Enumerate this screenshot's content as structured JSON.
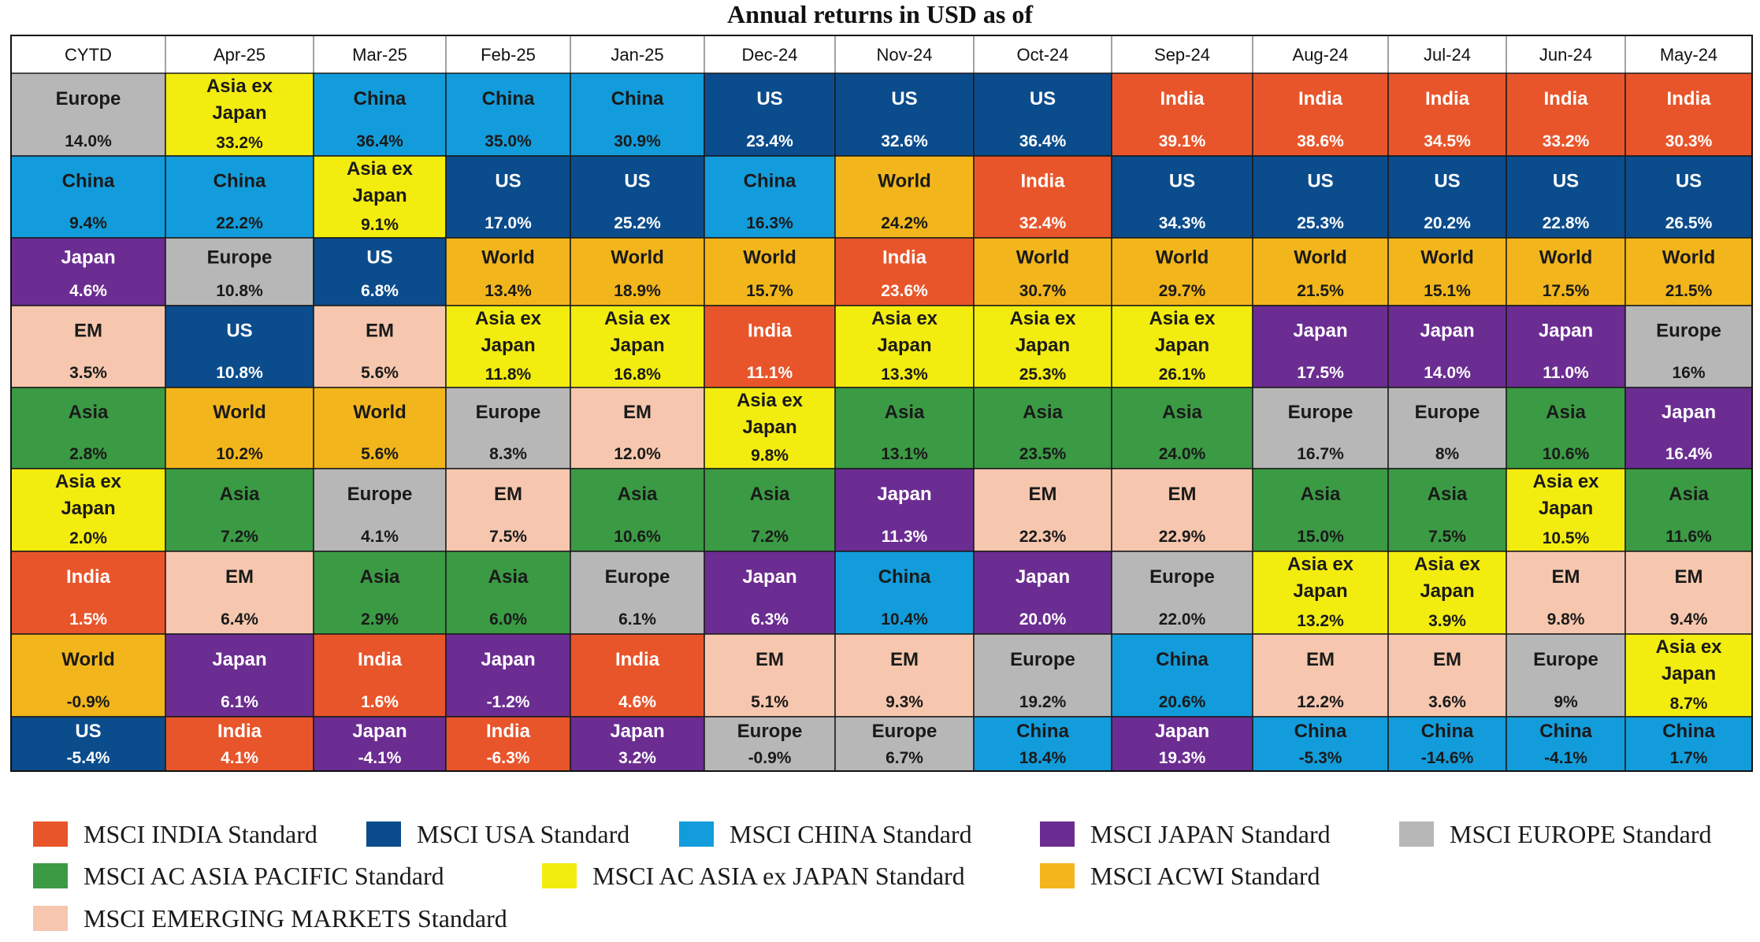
{
  "title": "Annual returns in USD as of",
  "legend": [
    {
      "key": "India",
      "label": "MSCI INDIA Standard"
    },
    {
      "key": "US",
      "label": "MSCI USA Standard"
    },
    {
      "key": "China",
      "label": "MSCI CHINA Standard"
    },
    {
      "key": "Japan",
      "label": "MSCI JAPAN Standard"
    },
    {
      "key": "Europe",
      "label": "MSCI EUROPE Standard"
    },
    {
      "key": "Asia",
      "label": "MSCI AC ASIA PACIFIC Standard"
    },
    {
      "key": "AsiaExJapan",
      "label": "MSCI AC ASIA ex JAPAN Standard"
    },
    {
      "key": "World",
      "label": "MSCI ACWI Standard"
    },
    {
      "key": "EM",
      "label": "MSCI EMERGING MARKETS Standard"
    }
  ],
  "colors": {
    "India": "#E8552A",
    "US": "#0B4C8C",
    "China": "#129CDB",
    "Japan": "#6B2D91",
    "Europe": "#B7B7B7",
    "Asia": "#3B9A44",
    "AsiaExJapan": "#F3EC0F",
    "World": "#F2B61C",
    "EM": "#F6C7AE"
  },
  "text_colors": {
    "India": "#ffffff",
    "US": "#ffffff",
    "China": "#1a1a1a",
    "Japan": "#ffffff",
    "Europe": "#1a1a1a",
    "Asia": "#1a1a1a",
    "AsiaExJapan": "#1a1a1a",
    "World": "#1a1a1a",
    "EM": "#1a1a1a"
  },
  "chart_data": {
    "type": "table",
    "title": "Annual returns in USD as of",
    "columns": [
      "CYTD",
      "Apr-25",
      "Mar-25",
      "Feb-25",
      "Jan-25",
      "Dec-24",
      "Nov-24",
      "Oct-24",
      "Sep-24",
      "Aug-24",
      "Jul-24",
      "Jun-24",
      "May-24"
    ],
    "grid": [
      [
        {
          "key": "Europe",
          "name": "Europe",
          "value": "14.0%"
        },
        {
          "key": "China",
          "name": "China",
          "value": "9.4%"
        },
        {
          "key": "Japan",
          "name": "Japan",
          "value": "4.6%"
        },
        {
          "key": "EM",
          "name": "EM",
          "value": "3.5%"
        },
        {
          "key": "Asia",
          "name": "Asia",
          "value": "2.8%"
        },
        {
          "key": "AsiaExJapan",
          "name": "Asia ex Japan",
          "value": "2.0%"
        },
        {
          "key": "India",
          "name": "India",
          "value": "1.5%"
        },
        {
          "key": "World",
          "name": "World",
          "value": "-0.9%"
        },
        {
          "key": "US",
          "name": "US",
          "value": "-5.4%"
        }
      ],
      [
        {
          "key": "AsiaExJapan",
          "name": "Asia ex Japan",
          "value": "33.2%"
        },
        {
          "key": "China",
          "name": "China",
          "value": "22.2%"
        },
        {
          "key": "Europe",
          "name": "Europe",
          "value": "10.8%"
        },
        {
          "key": "US",
          "name": "US",
          "value": "10.8%"
        },
        {
          "key": "World",
          "name": "World",
          "value": "10.2%"
        },
        {
          "key": "Asia",
          "name": "Asia",
          "value": "7.2%"
        },
        {
          "key": "EM",
          "name": "EM",
          "value": "6.4%"
        },
        {
          "key": "Japan",
          "name": "Japan",
          "value": "6.1%"
        },
        {
          "key": "India",
          "name": "India",
          "value": "4.1%"
        }
      ],
      [
        {
          "key": "China",
          "name": "China",
          "value": "36.4%"
        },
        {
          "key": "AsiaExJapan",
          "name": "Asia ex Japan",
          "value": "9.1%"
        },
        {
          "key": "US",
          "name": "US",
          "value": "6.8%"
        },
        {
          "key": "EM",
          "name": "EM",
          "value": "5.6%"
        },
        {
          "key": "World",
          "name": "World",
          "value": "5.6%"
        },
        {
          "key": "Europe",
          "name": "Europe",
          "value": "4.1%"
        },
        {
          "key": "Asia",
          "name": "Asia",
          "value": "2.9%"
        },
        {
          "key": "India",
          "name": "India",
          "value": "1.6%"
        },
        {
          "key": "Japan",
          "name": "Japan",
          "value": "-4.1%"
        }
      ],
      [
        {
          "key": "China",
          "name": "China",
          "value": "35.0%"
        },
        {
          "key": "US",
          "name": "US",
          "value": "17.0%"
        },
        {
          "key": "World",
          "name": "World",
          "value": "13.4%"
        },
        {
          "key": "AsiaExJapan",
          "name": "Asia ex Japan",
          "value": "11.8%"
        },
        {
          "key": "Europe",
          "name": "Europe",
          "value": "8.3%"
        },
        {
          "key": "EM",
          "name": "EM",
          "value": "7.5%"
        },
        {
          "key": "Asia",
          "name": "Asia",
          "value": "6.0%"
        },
        {
          "key": "Japan",
          "name": "Japan",
          "value": "-1.2%"
        },
        {
          "key": "India",
          "name": "India",
          "value": "-6.3%"
        }
      ],
      [
        {
          "key": "China",
          "name": "China",
          "value": "30.9%"
        },
        {
          "key": "US",
          "name": "US",
          "value": "25.2%"
        },
        {
          "key": "World",
          "name": "World",
          "value": "18.9%"
        },
        {
          "key": "AsiaExJapan",
          "name": "Asia ex Japan",
          "value": "16.8%"
        },
        {
          "key": "EM",
          "name": "EM",
          "value": "12.0%"
        },
        {
          "key": "Asia",
          "name": "Asia",
          "value": "10.6%"
        },
        {
          "key": "Europe",
          "name": "Europe",
          "value": "6.1%"
        },
        {
          "key": "India",
          "name": "India",
          "value": "4.6%"
        },
        {
          "key": "Japan",
          "name": "Japan",
          "value": "3.2%"
        }
      ],
      [
        {
          "key": "US",
          "name": "US",
          "value": "23.4%"
        },
        {
          "key": "China",
          "name": "China",
          "value": "16.3%"
        },
        {
          "key": "World",
          "name": "World",
          "value": "15.7%"
        },
        {
          "key": "India",
          "name": "India",
          "value": "11.1%"
        },
        {
          "key": "AsiaExJapan",
          "name": "Asia ex Japan",
          "value": "9.8%"
        },
        {
          "key": "Asia",
          "name": "Asia",
          "value": "7.2%"
        },
        {
          "key": "Japan",
          "name": "Japan",
          "value": "6.3%"
        },
        {
          "key": "EM",
          "name": "EM",
          "value": "5.1%"
        },
        {
          "key": "Europe",
          "name": "Europe",
          "value": "-0.9%"
        }
      ],
      [
        {
          "key": "US",
          "name": "US",
          "value": "32.6%"
        },
        {
          "key": "World",
          "name": "World",
          "value": "24.2%"
        },
        {
          "key": "India",
          "name": "India",
          "value": "23.6%"
        },
        {
          "key": "AsiaExJapan",
          "name": "Asia ex Japan",
          "value": "13.3%"
        },
        {
          "key": "Asia",
          "name": "Asia",
          "value": "13.1%"
        },
        {
          "key": "Japan",
          "name": "Japan",
          "value": "11.3%"
        },
        {
          "key": "China",
          "name": "China",
          "value": "10.4%"
        },
        {
          "key": "EM",
          "name": "EM",
          "value": "9.3%"
        },
        {
          "key": "Europe",
          "name": "Europe",
          "value": "6.7%"
        }
      ],
      [
        {
          "key": "US",
          "name": "US",
          "value": "36.4%"
        },
        {
          "key": "India",
          "name": "India",
          "value": "32.4%"
        },
        {
          "key": "World",
          "name": "World",
          "value": "30.7%"
        },
        {
          "key": "AsiaExJapan",
          "name": "Asia ex Japan",
          "value": "25.3%"
        },
        {
          "key": "Asia",
          "name": "Asia",
          "value": "23.5%"
        },
        {
          "key": "EM",
          "name": "EM",
          "value": "22.3%"
        },
        {
          "key": "Japan",
          "name": "Japan",
          "value": "20.0%"
        },
        {
          "key": "Europe",
          "name": "Europe",
          "value": "19.2%"
        },
        {
          "key": "China",
          "name": "China",
          "value": "18.4%"
        }
      ],
      [
        {
          "key": "India",
          "name": "India",
          "value": "39.1%"
        },
        {
          "key": "US",
          "name": "US",
          "value": "34.3%"
        },
        {
          "key": "World",
          "name": "World",
          "value": "29.7%"
        },
        {
          "key": "AsiaExJapan",
          "name": "Asia ex Japan",
          "value": "26.1%"
        },
        {
          "key": "Asia",
          "name": "Asia",
          "value": "24.0%"
        },
        {
          "key": "EM",
          "name": "EM",
          "value": "22.9%"
        },
        {
          "key": "Europe",
          "name": "Europe",
          "value": "22.0%"
        },
        {
          "key": "China",
          "name": "China",
          "value": "20.6%"
        },
        {
          "key": "Japan",
          "name": "Japan",
          "value": "19.3%"
        }
      ],
      [
        {
          "key": "India",
          "name": "India",
          "value": "38.6%"
        },
        {
          "key": "US",
          "name": "US",
          "value": "25.3%"
        },
        {
          "key": "World",
          "name": "World",
          "value": "21.5%"
        },
        {
          "key": "Japan",
          "name": "Japan",
          "value": "17.5%"
        },
        {
          "key": "Europe",
          "name": "Europe",
          "value": "16.7%"
        },
        {
          "key": "Asia",
          "name": "Asia",
          "value": "15.0%"
        },
        {
          "key": "AsiaExJapan",
          "name": "Asia ex Japan",
          "value": "13.2%"
        },
        {
          "key": "EM",
          "name": "EM",
          "value": "12.2%"
        },
        {
          "key": "China",
          "name": "China",
          "value": "-5.3%"
        }
      ],
      [
        {
          "key": "India",
          "name": "India",
          "value": "34.5%"
        },
        {
          "key": "US",
          "name": "US",
          "value": "20.2%"
        },
        {
          "key": "World",
          "name": "World",
          "value": "15.1%"
        },
        {
          "key": "Japan",
          "name": "Japan",
          "value": "14.0%"
        },
        {
          "key": "Europe",
          "name": "Europe",
          "value": "8%"
        },
        {
          "key": "Asia",
          "name": "Asia",
          "value": "7.5%"
        },
        {
          "key": "AsiaExJapan",
          "name": "Asia ex Japan",
          "value": "3.9%"
        },
        {
          "key": "EM",
          "name": "EM",
          "value": "3.6%"
        },
        {
          "key": "China",
          "name": "China",
          "value": "-14.6%"
        }
      ],
      [
        {
          "key": "India",
          "name": "India",
          "value": "33.2%"
        },
        {
          "key": "US",
          "name": "US",
          "value": "22.8%"
        },
        {
          "key": "World",
          "name": "World",
          "value": "17.5%"
        },
        {
          "key": "Japan",
          "name": "Japan",
          "value": "11.0%"
        },
        {
          "key": "Asia",
          "name": "Asia",
          "value": "10.6%"
        },
        {
          "key": "AsiaExJapan",
          "name": "Asia ex Japan",
          "value": "10.5%"
        },
        {
          "key": "EM",
          "name": "EM",
          "value": "9.8%"
        },
        {
          "key": "Europe",
          "name": "Europe",
          "value": "9%"
        },
        {
          "key": "China",
          "name": "China",
          "value": "-4.1%"
        }
      ],
      [
        {
          "key": "India",
          "name": "India",
          "value": "30.3%"
        },
        {
          "key": "US",
          "name": "US",
          "value": "26.5%"
        },
        {
          "key": "World",
          "name": "World",
          "value": "21.5%"
        },
        {
          "key": "Europe",
          "name": "Europe",
          "value": "16%"
        },
        {
          "key": "Japan",
          "name": "Japan",
          "value": "16.4%"
        },
        {
          "key": "Asia",
          "name": "Asia",
          "value": "11.6%"
        },
        {
          "key": "EM",
          "name": "EM",
          "value": "9.4%"
        },
        {
          "key": "AsiaExJapan",
          "name": "Asia ex Japan",
          "value": "8.7%"
        },
        {
          "key": "China",
          "name": "China",
          "value": "1.7%"
        }
      ]
    ]
  }
}
